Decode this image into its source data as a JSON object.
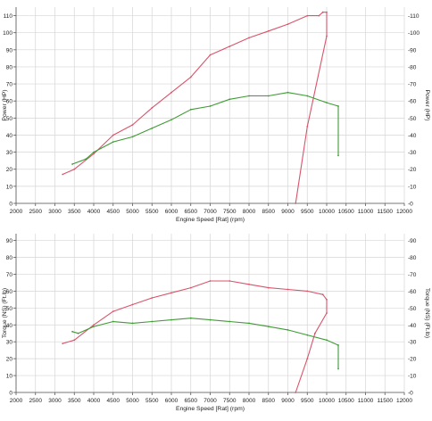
{
  "chart_data": [
    {
      "type": "line",
      "ylabel": "Power (HP)",
      "ylabel_right": "Power (HP)",
      "xlabel": "Engine Speed [Rat] (rpm)",
      "xlim": [
        2000,
        12000
      ],
      "ylim": [
        0,
        115
      ],
      "xticks": [
        2000,
        2500,
        3000,
        3500,
        4000,
        4500,
        5000,
        5500,
        6000,
        6500,
        7000,
        7500,
        8000,
        8500,
        9000,
        9500,
        10000,
        10500,
        11000,
        11500,
        12000
      ],
      "yticks": [
        0,
        10,
        20,
        30,
        40,
        50,
        60,
        70,
        80,
        90,
        100,
        110
      ],
      "yticks_right": [
        "-0",
        "-10",
        "-20",
        "-30",
        "-40",
        "-50",
        "-60",
        "-70",
        "-80",
        "-90",
        "-100",
        "-110"
      ],
      "grid": true,
      "series": [
        {
          "color": "#d9546a",
          "points": [
            [
              3200,
              17
            ],
            [
              3500,
              20
            ],
            [
              4000,
              29
            ],
            [
              4500,
              40
            ],
            [
              5000,
              46
            ],
            [
              5500,
              56
            ],
            [
              6000,
              65
            ],
            [
              6500,
              74
            ],
            [
              7000,
              87
            ],
            [
              7500,
              92
            ],
            [
              8000,
              97
            ],
            [
              8500,
              101
            ],
            [
              9000,
              105
            ],
            [
              9500,
              110
            ],
            [
              9800,
              110
            ],
            [
              9900,
              112
            ],
            [
              10000,
              112
            ],
            [
              10000,
              98
            ],
            [
              9500,
              45
            ],
            [
              9200,
              0
            ]
          ]
        },
        {
          "color": "#3f9b35",
          "points": [
            [
              3450,
              23
            ],
            [
              3800,
              26
            ],
            [
              4000,
              30
            ],
            [
              4500,
              36
            ],
            [
              5000,
              39
            ],
            [
              5500,
              44
            ],
            [
              6000,
              49
            ],
            [
              6500,
              55
            ],
            [
              7000,
              57
            ],
            [
              7500,
              61
            ],
            [
              8000,
              63
            ],
            [
              8500,
              63
            ],
            [
              9000,
              65
            ],
            [
              9500,
              63
            ],
            [
              10000,
              59
            ],
            [
              10300,
              57
            ],
            [
              10300,
              28
            ]
          ]
        }
      ]
    },
    {
      "type": "line",
      "ylabel": "Torque (NS) (Ft.lb)",
      "ylabel_right": "Torque (NS) (Ft.lb)",
      "xlabel": "Engine Speed [Rat] (rpm)",
      "xlim": [
        2000,
        12000
      ],
      "ylim": [
        0,
        94
      ],
      "xticks": [
        2000,
        2500,
        3000,
        3500,
        4000,
        4500,
        5000,
        5500,
        6000,
        6500,
        7000,
        7500,
        8000,
        8500,
        9000,
        9500,
        10000,
        10500,
        11000,
        11500,
        12000
      ],
      "yticks": [
        0,
        10,
        20,
        30,
        40,
        50,
        60,
        70,
        80,
        90
      ],
      "yticks_right": [
        "-0",
        "-10",
        "-20",
        "-30",
        "-40",
        "-50",
        "-60",
        "-70",
        "-80",
        "-90"
      ],
      "grid": true,
      "series": [
        {
          "color": "#d9546a",
          "points": [
            [
              3200,
              29
            ],
            [
              3500,
              31
            ],
            [
              4000,
              40
            ],
            [
              4500,
              48
            ],
            [
              5000,
              52
            ],
            [
              5500,
              56
            ],
            [
              6000,
              59
            ],
            [
              6500,
              62
            ],
            [
              7000,
              66
            ],
            [
              7500,
              66
            ],
            [
              8000,
              64
            ],
            [
              8500,
              62
            ],
            [
              9000,
              61
            ],
            [
              9500,
              60
            ],
            [
              9900,
              58
            ],
            [
              10000,
              55
            ],
            [
              10000,
              47
            ],
            [
              9700,
              35
            ],
            [
              9500,
              20
            ],
            [
              9200,
              0
            ]
          ]
        },
        {
          "color": "#3f9b35",
          "points": [
            [
              3450,
              36
            ],
            [
              3600,
              35
            ],
            [
              4000,
              39
            ],
            [
              4500,
              42
            ],
            [
              5000,
              41
            ],
            [
              5500,
              42
            ],
            [
              6000,
              43
            ],
            [
              6500,
              44
            ],
            [
              7000,
              43
            ],
            [
              7500,
              42
            ],
            [
              8000,
              41
            ],
            [
              8500,
              39
            ],
            [
              9000,
              37
            ],
            [
              9500,
              34
            ],
            [
              10000,
              31
            ],
            [
              10300,
              28
            ],
            [
              10300,
              14
            ]
          ]
        }
      ]
    }
  ]
}
